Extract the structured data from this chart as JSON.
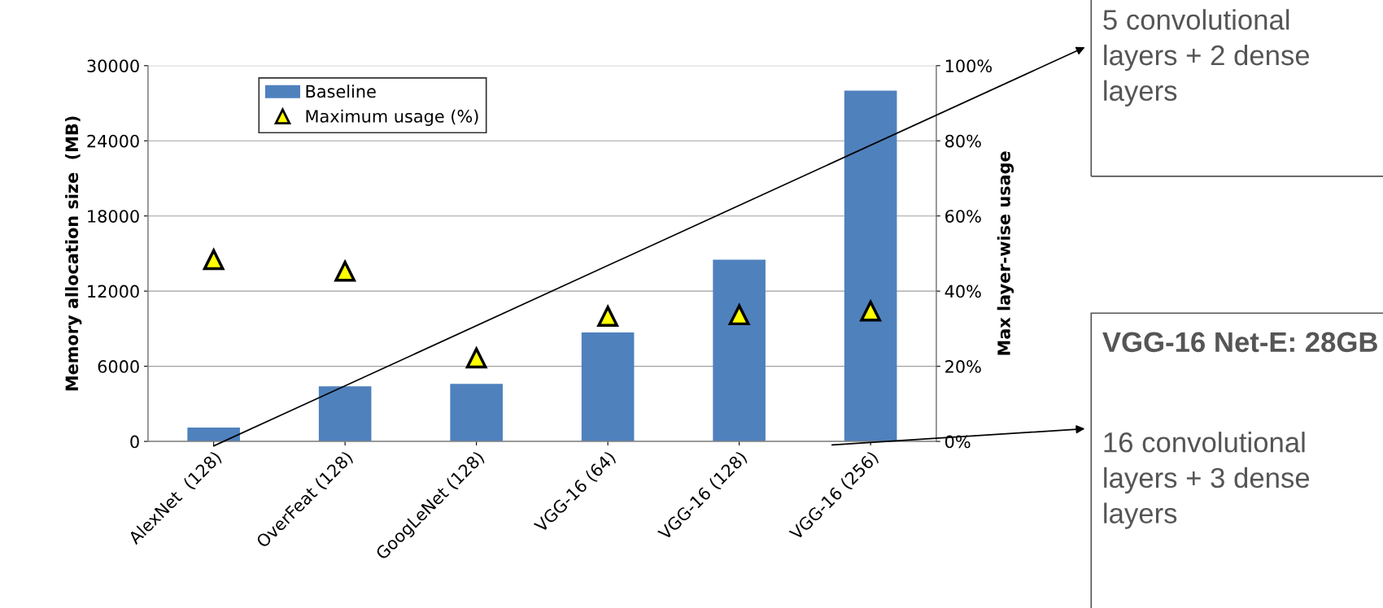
{
  "chart_data": {
    "type": "bar",
    "categories": [
      "AlexNet  (128)",
      "OverFeat (128)",
      "GoogLeNet (128)",
      "VGG-16 (64)",
      "VGG-16 (128)",
      "VGG-16 (256)"
    ],
    "series": [
      {
        "name": "Baseline",
        "color": "#4f81bd",
        "values": [
          1100,
          4400,
          4600,
          8700,
          14500,
          28000
        ]
      },
      {
        "name": "Maximum usage (%)",
        "type": "scatter",
        "axis": "y2",
        "color": "#ffff00",
        "marker": "triangle",
        "values": [
          48.4,
          45.3,
          22.2,
          33.3,
          33.7,
          34.7
        ]
      }
    ],
    "ylabel": "Memory allocation size  (MB)",
    "y2label": "Max layer-wise usage",
    "ylim": [
      0,
      30000
    ],
    "yticks": [
      0,
      6000,
      12000,
      18000,
      24000,
      30000
    ],
    "y2lim": [
      0,
      100
    ],
    "y2ticks": [
      {
        "value": 0,
        "label": "0%"
      },
      {
        "value": 20,
        "label": "20%"
      },
      {
        "value": 40,
        "label": "40%"
      },
      {
        "value": 60,
        "label": "60%"
      },
      {
        "value": 80,
        "label": "80%"
      },
      {
        "value": 100,
        "label": "100%"
      }
    ],
    "grid": "y",
    "legend": "top left",
    "annotations": [
      "5 convolutional layers + 2 dense layers",
      "VGG-16 Net-E: 28GB",
      "16 convolutional layers + 3 dense layers"
    ]
  }
}
